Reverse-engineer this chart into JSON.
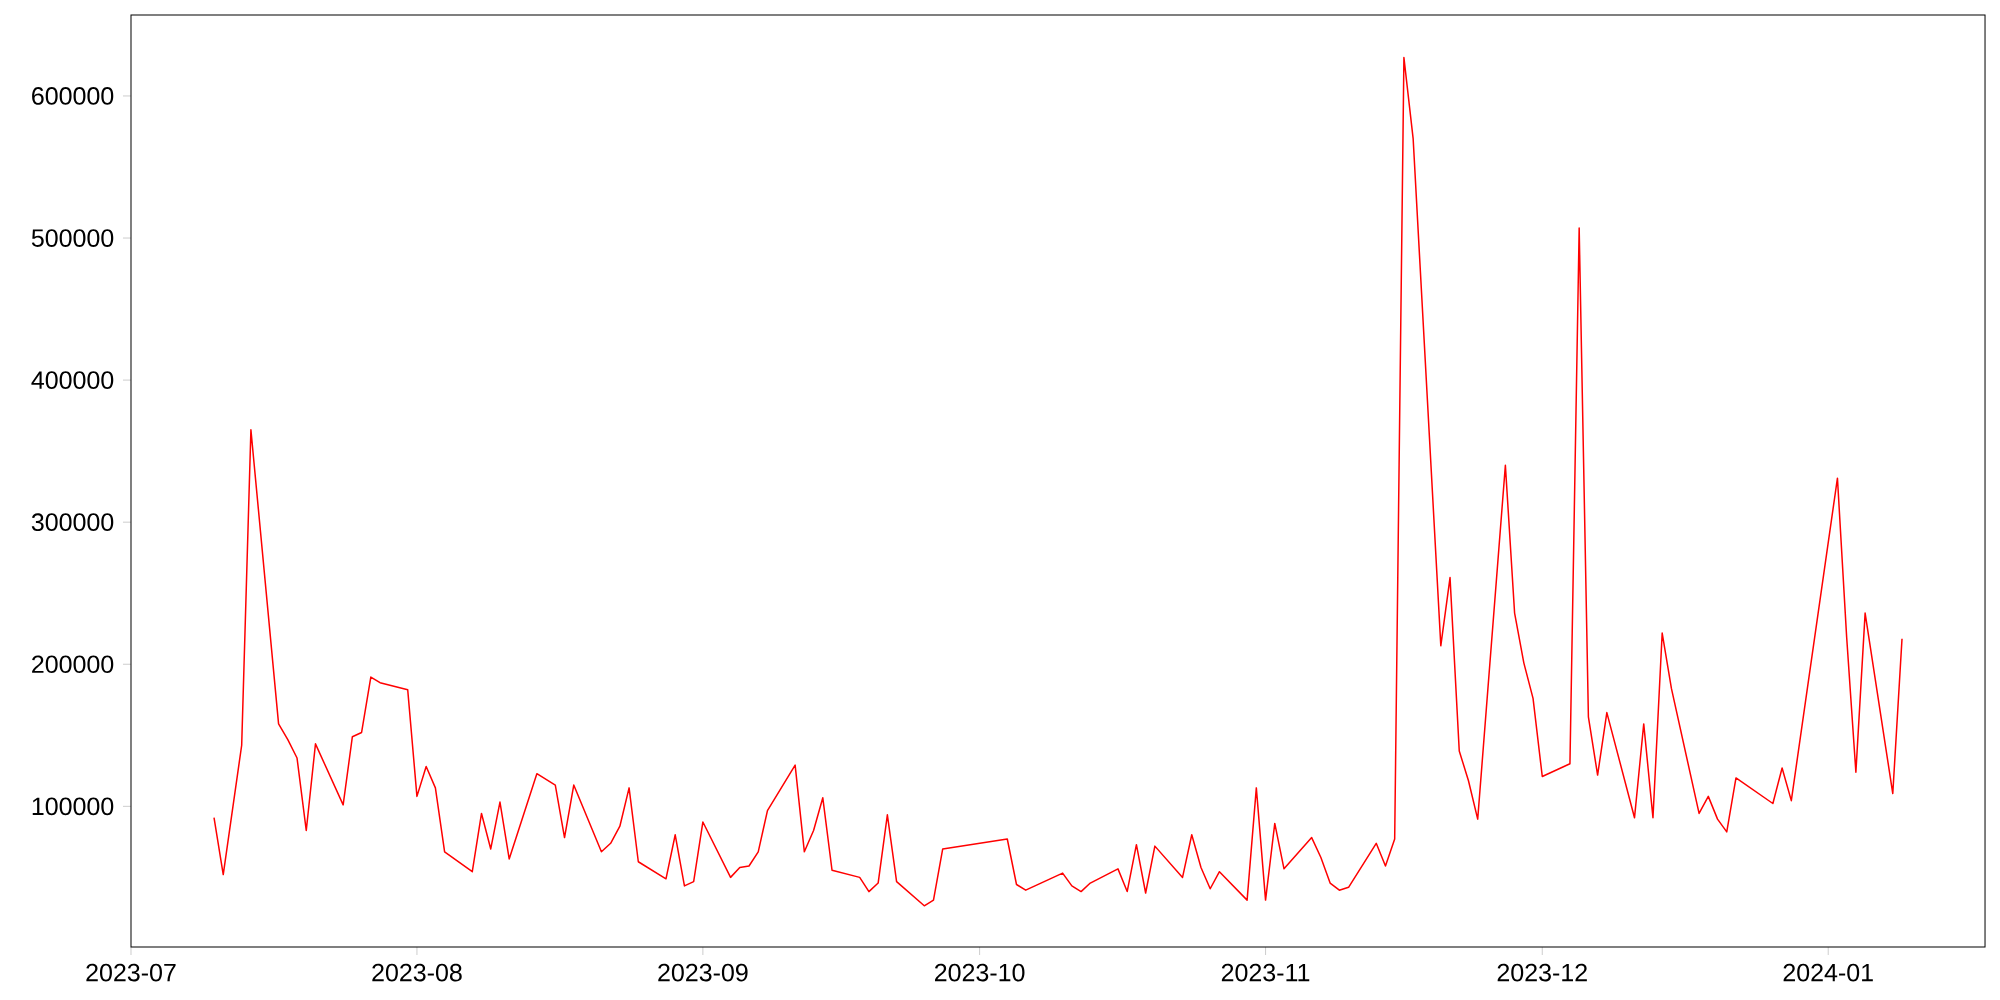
{
  "chart_data": {
    "type": "line",
    "color": "#ff0000",
    "x": [
      "2023-07-10",
      "2023-07-11",
      "2023-07-13",
      "2023-07-14",
      "2023-07-17",
      "2023-07-18",
      "2023-07-19",
      "2023-07-20",
      "2023-07-21",
      "2023-07-24",
      "2023-07-25",
      "2023-07-26",
      "2023-07-27",
      "2023-07-28",
      "2023-07-31",
      "2023-08-01",
      "2023-08-02",
      "2023-08-03",
      "2023-08-04",
      "2023-08-07",
      "2023-08-08",
      "2023-08-09",
      "2023-08-10",
      "2023-08-11",
      "2023-08-14",
      "2023-08-16",
      "2023-08-17",
      "2023-08-18",
      "2023-08-21",
      "2023-08-22",
      "2023-08-23",
      "2023-08-24",
      "2023-08-25",
      "2023-08-28",
      "2023-08-29",
      "2023-08-30",
      "2023-08-31",
      "2023-09-01",
      "2023-09-04",
      "2023-09-05",
      "2023-09-06",
      "2023-09-07",
      "2023-09-08",
      "2023-09-11",
      "2023-09-12",
      "2023-09-13",
      "2023-09-14",
      "2023-09-15",
      "2023-09-18",
      "2023-09-19",
      "2023-09-20",
      "2023-09-21",
      "2023-09-22",
      "2023-09-25",
      "2023-09-26",
      "2023-09-27",
      "2023-10-04",
      "2023-10-05",
      "2023-10-06",
      "2023-10-10",
      "2023-10-11",
      "2023-10-12",
      "2023-10-13",
      "2023-10-16",
      "2023-10-17",
      "2023-10-18",
      "2023-10-19",
      "2023-10-20",
      "2023-10-23",
      "2023-10-24",
      "2023-10-25",
      "2023-10-26",
      "2023-10-27",
      "2023-10-30",
      "2023-10-31",
      "2023-11-01",
      "2023-11-02",
      "2023-11-03",
      "2023-11-06",
      "2023-11-07",
      "2023-11-08",
      "2023-11-09",
      "2023-11-10",
      "2023-11-13",
      "2023-11-14",
      "2023-11-15",
      "2023-11-16",
      "2023-11-17",
      "2023-11-20",
      "2023-11-21",
      "2023-11-22",
      "2023-11-23",
      "2023-11-24",
      "2023-11-27",
      "2023-11-28",
      "2023-11-29",
      "2023-11-30",
      "2023-12-01",
      "2023-12-04",
      "2023-12-05",
      "2023-12-06",
      "2023-12-07",
      "2023-12-08",
      "2023-12-11",
      "2023-12-12",
      "2023-12-13",
      "2023-12-14",
      "2023-12-15",
      "2023-12-18",
      "2023-12-19",
      "2023-12-20",
      "2023-12-21",
      "2023-12-22",
      "2023-12-26",
      "2023-12-27",
      "2023-12-28",
      "2024-01-02",
      "2024-01-03",
      "2024-01-04",
      "2024-01-05",
      "2024-01-08",
      "2024-01-09"
    ],
    "values": [
      92000,
      52000,
      143000,
      365000,
      158000,
      147000,
      134000,
      83000,
      144000,
      101000,
      149000,
      152000,
      191000,
      187000,
      182000,
      107000,
      128000,
      113000,
      68000,
      54000,
      95000,
      70000,
      103000,
      63000,
      123000,
      115000,
      78000,
      115000,
      68000,
      74000,
      86000,
      113000,
      61000,
      49000,
      80000,
      44000,
      47000,
      89000,
      50000,
      57000,
      58000,
      68000,
      97000,
      129000,
      68000,
      83000,
      106000,
      55000,
      50000,
      40000,
      46000,
      94000,
      47000,
      30000,
      34000,
      70000,
      77000,
      45000,
      41000,
      53000,
      44000,
      40000,
      46000,
      56000,
      40000,
      73000,
      39000,
      72000,
      50000,
      80000,
      57000,
      42000,
      54000,
      34000,
      113000,
      34000,
      88000,
      56000,
      78000,
      64000,
      46000,
      41000,
      43000,
      74000,
      58000,
      77000,
      627000,
      570000,
      213000,
      261000,
      139000,
      118000,
      91000,
      340000,
      236000,
      201000,
      176000,
      121000,
      130000,
      507000,
      163000,
      122000,
      166000,
      92000,
      158000,
      92000,
      222000,
      183000,
      95000,
      107000,
      91000,
      82000,
      120000,
      102000,
      127000,
      104000,
      331000,
      219000,
      124000,
      236000,
      109000,
      218000
    ],
    "xlim": [
      "2023-07-01",
      "2024-01-18"
    ],
    "xticks": [
      {
        "value": "2023-07-01",
        "label": "2023-07"
      },
      {
        "value": "2023-08-01",
        "label": "2023-08"
      },
      {
        "value": "2023-09-01",
        "label": "2023-09"
      },
      {
        "value": "2023-10-01",
        "label": "2023-10"
      },
      {
        "value": "2023-11-01",
        "label": "2023-11"
      },
      {
        "value": "2023-12-01",
        "label": "2023-12"
      },
      {
        "value": "2024-01-01",
        "label": "2024-01"
      }
    ],
    "ylim": [
      1000,
      657000
    ],
    "yticks": [
      100000,
      200000,
      300000,
      400000,
      500000,
      600000
    ]
  }
}
